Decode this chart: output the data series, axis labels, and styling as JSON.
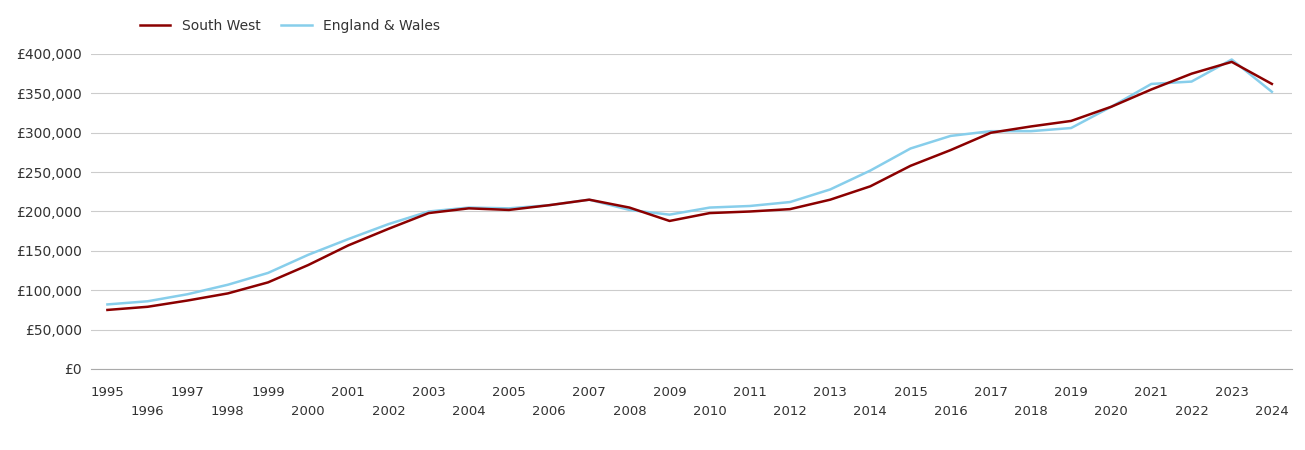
{
  "years": [
    1995,
    1996,
    1997,
    1998,
    1999,
    2000,
    2001,
    2002,
    2003,
    2004,
    2005,
    2006,
    2007,
    2008,
    2009,
    2010,
    2011,
    2012,
    2013,
    2014,
    2015,
    2016,
    2017,
    2018,
    2019,
    2020,
    2021,
    2022,
    2023,
    2024
  ],
  "south_west": [
    75000,
    79000,
    87000,
    96000,
    110000,
    132000,
    157000,
    178000,
    198000,
    204000,
    202000,
    208000,
    215000,
    205000,
    188000,
    198000,
    200000,
    203000,
    215000,
    232000,
    258000,
    278000,
    300000,
    308000,
    315000,
    333000,
    355000,
    375000,
    390000,
    362000
  ],
  "england_wales": [
    82000,
    86000,
    95000,
    107000,
    122000,
    145000,
    165000,
    184000,
    200000,
    205000,
    204000,
    208000,
    215000,
    202000,
    196000,
    205000,
    207000,
    212000,
    228000,
    252000,
    280000,
    296000,
    302000,
    302000,
    306000,
    333000,
    362000,
    365000,
    393000,
    352000
  ],
  "sw_color": "#8B0000",
  "ew_color": "#87CEEB",
  "sw_label": "South West",
  "ew_label": "England & Wales",
  "ylim": [
    0,
    400000
  ],
  "yticks": [
    0,
    50000,
    100000,
    150000,
    200000,
    250000,
    300000,
    350000,
    400000
  ],
  "ytick_labels": [
    "£0",
    "£50,000",
    "£100,000",
    "£150,000",
    "£200,000",
    "£250,000",
    "£300,000",
    "£350,000",
    "£400,000"
  ],
  "line_width": 1.8,
  "bg_color": "#ffffff",
  "grid_color": "#cccccc",
  "x_tick_odd": [
    1995,
    1997,
    1999,
    2001,
    2003,
    2005,
    2007,
    2009,
    2011,
    2013,
    2015,
    2017,
    2019,
    2021,
    2023
  ],
  "x_tick_even": [
    1996,
    1998,
    2000,
    2002,
    2004,
    2006,
    2008,
    2010,
    2012,
    2014,
    2016,
    2018,
    2020,
    2022,
    2024
  ]
}
